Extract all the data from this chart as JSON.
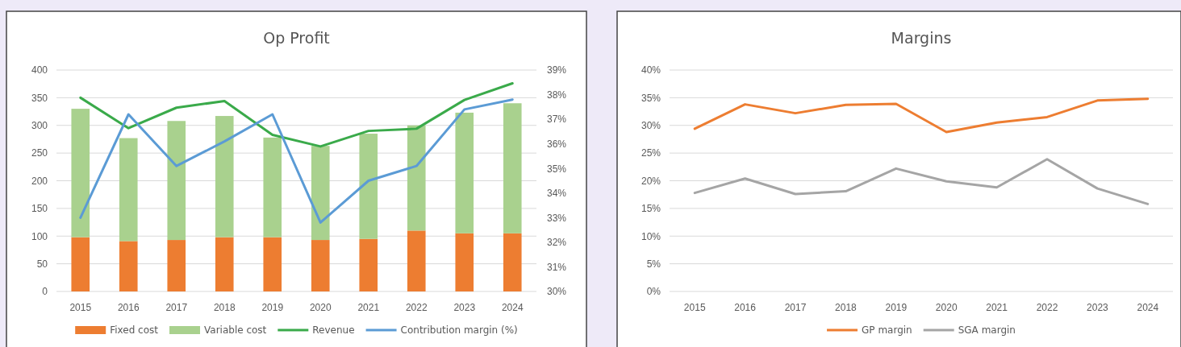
{
  "chart_data": [
    {
      "type": "bar",
      "title": "Op Profit",
      "stacked": true,
      "grid": "y",
      "legend": "bottom",
      "categories": [
        "2015",
        "2016",
        "2017",
        "2018",
        "2019",
        "2020",
        "2021",
        "2022",
        "2023",
        "2024"
      ],
      "series": [
        {
          "name": "Fixed cost",
          "color": "#ed7d31",
          "values": [
            98,
            91,
            93,
            98,
            98,
            93,
            95,
            110,
            105,
            105
          ]
        },
        {
          "name": "Variable cost",
          "color": "#a9d18e",
          "values": [
            232,
            186,
            215,
            219,
            180,
            170,
            190,
            190,
            218,
            235
          ]
        },
        {
          "name": "Revenue",
          "type": "line",
          "color": "#3aaa4a",
          "values": [
            350,
            295,
            332,
            344,
            283,
            262,
            290,
            294,
            346,
            376
          ]
        },
        {
          "name": "Contribution margin (%)",
          "type": "line",
          "axis": "y2",
          "color": "#5b9bd5",
          "values": [
            33.0,
            37.2,
            35.1,
            36.1,
            37.2,
            32.8,
            34.5,
            35.1,
            37.4,
            37.8
          ]
        }
      ],
      "ylim": [
        0,
        400
      ],
      "yticks": [
        0,
        50,
        100,
        150,
        200,
        250,
        300,
        350,
        400
      ],
      "y2lim": [
        30,
        39
      ],
      "y2ticks": [
        {
          "value": 30,
          "label": "30%"
        },
        {
          "value": 31,
          "label": "31%"
        },
        {
          "value": 32,
          "label": "32%"
        },
        {
          "value": 33,
          "label": "33%"
        },
        {
          "value": 34,
          "label": "34%"
        },
        {
          "value": 35,
          "label": "35%"
        },
        {
          "value": 36,
          "label": "36%"
        },
        {
          "value": 37,
          "label": "37%"
        },
        {
          "value": 38,
          "label": "38%"
        },
        {
          "value": 39,
          "label": "39%"
        }
      ]
    },
    {
      "type": "line",
      "title": "Margins",
      "grid": "y",
      "legend": "bottom",
      "categories": [
        "2015",
        "2016",
        "2017",
        "2018",
        "2019",
        "2020",
        "2021",
        "2022",
        "2023",
        "2024"
      ],
      "series": [
        {
          "name": "GP margin",
          "color": "#ed7d31",
          "values": [
            29.4,
            33.8,
            32.2,
            33.7,
            33.9,
            28.8,
            30.5,
            31.5,
            34.5,
            34.8
          ]
        },
        {
          "name": "SGA margin",
          "color": "#a5a5a5",
          "values": [
            17.8,
            20.4,
            17.6,
            18.1,
            22.2,
            19.9,
            18.8,
            23.9,
            18.6,
            15.8
          ]
        }
      ],
      "ylim": [
        0,
        40
      ],
      "yticks": [
        {
          "value": 0,
          "label": "0%"
        },
        {
          "value": 5,
          "label": "5%"
        },
        {
          "value": 10,
          "label": "10%"
        },
        {
          "value": 15,
          "label": "15%"
        },
        {
          "value": 20,
          "label": "20%"
        },
        {
          "value": 25,
          "label": "25%"
        },
        {
          "value": 30,
          "label": "30%"
        },
        {
          "value": 35,
          "label": "35%"
        },
        {
          "value": 40,
          "label": "40%"
        }
      ]
    }
  ]
}
